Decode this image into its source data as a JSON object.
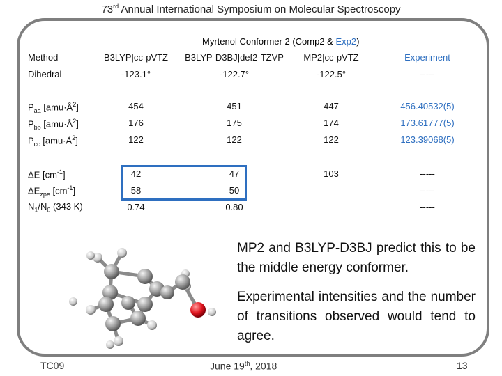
{
  "header": {
    "number": "73",
    "suffix": "rd",
    "rest": " Annual International Symposium on Molecular Spectroscopy"
  },
  "conformer_title": {
    "main": "Myrtenol Conformer 2 (Comp2 & ",
    "exp": "Exp2",
    "close": ")"
  },
  "columns": {
    "method": "Method",
    "c1": "B3LYP|cc-pVTZ",
    "c2": "B3LYP-D3BJ|def2-TZVP",
    "c3": "MP2|cc-pVTZ",
    "exp": "Experiment"
  },
  "rows": {
    "dihedral": {
      "label": "Dihedral",
      "c1": "-123.1°",
      "c2": "-122.7°",
      "c3": "-122.5°",
      "exp": "-----"
    },
    "paa": {
      "p": "P",
      "sub": "aa",
      "unit": " [amu·Å",
      "sup": "2",
      "close": "]",
      "c1": "454",
      "c2": "451",
      "c3": "447",
      "exp": "456.40532(5)"
    },
    "pbb": {
      "p": "P",
      "sub": "bb",
      "unit": " [amu·Å",
      "sup": "2",
      "close": "]",
      "c1": "176",
      "c2": "175",
      "c3": "174",
      "exp": "173.61777(5)"
    },
    "pcc": {
      "p": "P",
      "sub": "cc",
      "unit": " [amu·Å",
      "sup": "2",
      "close": "]",
      "c1": "122",
      "c2": "122",
      "c3": "122",
      "exp": "123.39068(5)"
    },
    "de": {
      "label": "ΔE [cm",
      "sup": "-1",
      "close": "]",
      "c1": "42",
      "c2": "47",
      "c3": "103",
      "exp": "-----"
    },
    "dezpe": {
      "label": "ΔE",
      "sub": "zpe",
      "unit": " [cm",
      "sup": "-1",
      "close": "]",
      "c1": "58",
      "c2": "50",
      "exp": "-----"
    },
    "ratio": {
      "n1": "N",
      "s1": "1",
      "slash": "/N",
      "s0": "0",
      "rest": " (343 K)",
      "c1": "0.74",
      "c2": "0.80",
      "exp": "-----"
    }
  },
  "text": {
    "p1": "MP2 and B3LYP-D3BJ predict this to be the middle energy conformer.",
    "p2": "Experimental intensities and the number of transitions observed would tend to agree."
  },
  "footer": {
    "left": "TC09",
    "date_pre": "June 19",
    "date_sup": "th",
    "date_post": ", 2018",
    "page": "13"
  },
  "colors": {
    "accent": "#2e6fc0",
    "frame": "#7f7f7f",
    "oxygen": "#e0141e",
    "carbon": "#9a9a9a"
  }
}
